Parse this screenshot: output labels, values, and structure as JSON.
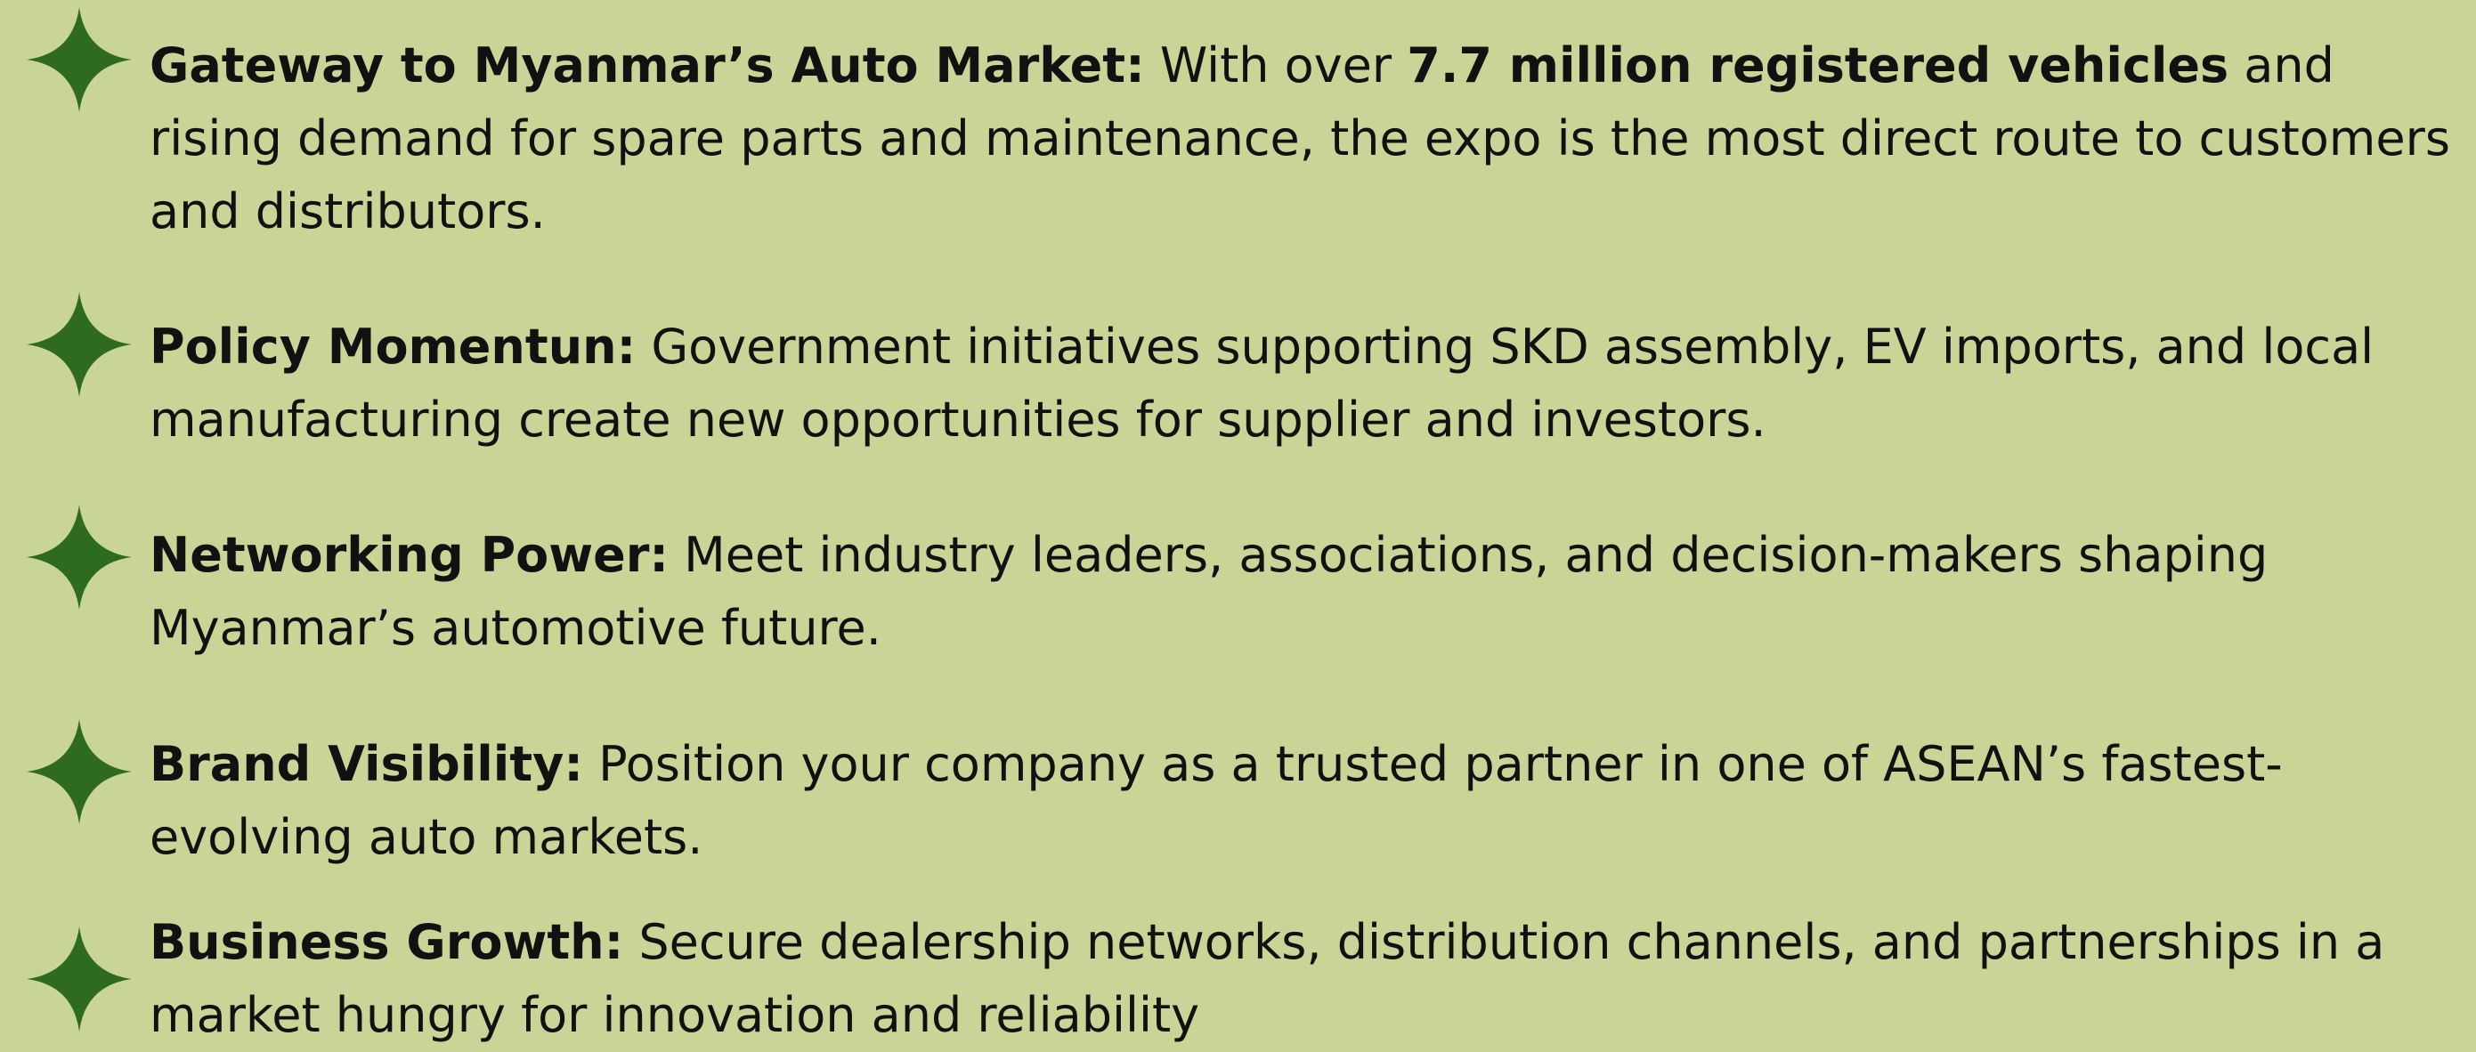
{
  "items": [
    {
      "segments": [
        {
          "text": "Gateway to Myanmar’s Auto Market:",
          "bold": true
        },
        {
          "text": " With over ",
          "bold": false
        },
        {
          "text": "7.7 million registered vehicles",
          "bold": true
        },
        {
          "text": " and rising demand for spare parts and maintenance, the expo is the most direct route to customers and distributors.",
          "bold": false
        }
      ]
    },
    {
      "segments": [
        {
          "text": "Policy Momentun:",
          "bold": true
        },
        {
          "text": " Government initiatives supporting SKD assembly, EV imports, and local manufacturing create new opportunities for supplier and investors.",
          "bold": false
        }
      ]
    },
    {
      "segments": [
        {
          "text": "Networking Power:",
          "bold": true
        },
        {
          "text": " Meet industry leaders, associations, and decision-makers shaping Myanmar’s automotive future.",
          "bold": false
        }
      ]
    },
    {
      "segments": [
        {
          "text": "Brand Visibility:",
          "bold": true
        },
        {
          "text": " Position your company as a trusted partner in one of ASEAN’s fastest-evolving auto markets.",
          "bold": false
        }
      ]
    },
    {
      "segments": [
        {
          "text": "Business Growth:",
          "bold": true
        },
        {
          "text": " Secure dealership networks, distribution channels, and partnerships in a market hungry for innovation and reliability",
          "bold": false
        }
      ]
    }
  ]
}
